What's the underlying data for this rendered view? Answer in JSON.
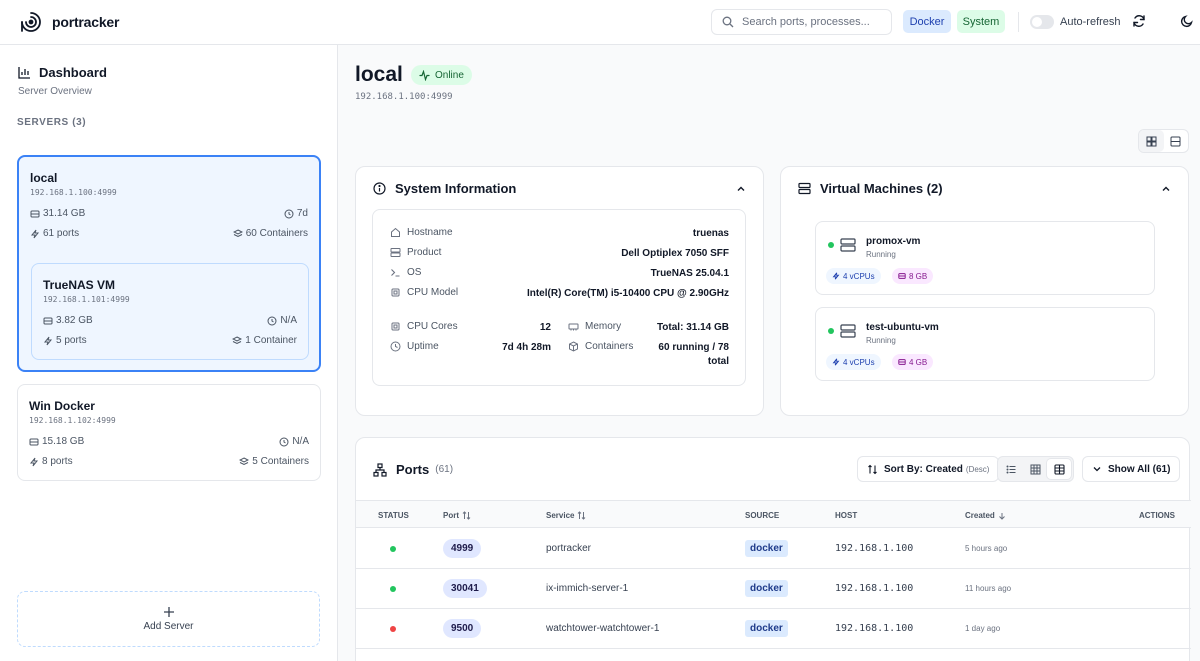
{
  "app": {
    "name": "portracker"
  },
  "header": {
    "search_placeholder": "Search ports, processes...",
    "filters": [
      {
        "label": "Docker",
        "color": "#dbeafe"
      },
      {
        "label": "System",
        "color": "#dcfce7"
      }
    ],
    "auto_refresh_label": "Auto-refresh",
    "auto_refresh_on": false
  },
  "sidebar": {
    "title": "Dashboard",
    "subtitle": "Server Overview",
    "servers_heading": "SERVERS (3)",
    "servers": [
      {
        "name": "local",
        "ip": "192.168.1.100:4999",
        "memory": "31.14 GB",
        "uptime": "7d",
        "ports": "61 ports",
        "containers": "60 Containers",
        "active": true
      },
      {
        "name": "TrueNAS VM",
        "ip": "192.168.1.101:4999",
        "memory": "3.82 GB",
        "uptime": "N/A",
        "ports": "5 ports",
        "containers": "1 Container",
        "nested": true
      },
      {
        "name": "Win Docker",
        "ip": "192.168.1.102:4999",
        "memory": "15.18 GB",
        "uptime": "N/A",
        "ports": "8 ports",
        "containers": "5 Containers"
      }
    ],
    "add_server_label": "Add Server"
  },
  "server": {
    "name": "local",
    "status": "Online",
    "address": "192.168.1.100:4999"
  },
  "system_info": {
    "title": "System Information",
    "rows": [
      {
        "label": "Hostname",
        "icon": "home-icon",
        "value": "truenas"
      },
      {
        "label": "Product",
        "icon": "server-icon",
        "value": "Dell Optiplex 7050 SFF"
      },
      {
        "label": "OS",
        "icon": "terminal-icon",
        "value": "TrueNAS 25.04.1"
      },
      {
        "label": "CPU Model",
        "icon": "cpu-icon",
        "value": "Intel(R) Core(TM) i5-10400 CPU @ 2.90GHz"
      }
    ],
    "cpu_cores": {
      "label": "CPU Cores",
      "value": "12"
    },
    "uptime": {
      "label": "Uptime",
      "value": "7d 4h 28m"
    },
    "memory": {
      "label": "Memory",
      "value": "Total: 31.14 GB"
    },
    "containers": {
      "label": "Containers",
      "value_line1": "60 running / 78",
      "value_line2": "total"
    }
  },
  "vms": {
    "title": "Virtual Machines (2)",
    "items": [
      {
        "name": "promox-vm",
        "state": "Running",
        "cpus": "4 vCPUs",
        "memory": "8 GB"
      },
      {
        "name": "test-ubuntu-vm",
        "state": "Running",
        "cpus": "4 vCPUs",
        "memory": "4 GB"
      }
    ]
  },
  "ports": {
    "title": "Ports",
    "count": "(61)",
    "sort_label": "Sort By: Created",
    "sort_dir": "(Desc)",
    "show_all_label": "Show All (61)",
    "columns": [
      "STATUS",
      "Port",
      "Service",
      "SOURCE",
      "HOST",
      "Created",
      "ACTIONS"
    ],
    "rows": [
      {
        "status": "green",
        "port": "4999",
        "service": "portracker",
        "source": "docker",
        "host": "192.168.1.100",
        "created": "5 hours ago"
      },
      {
        "status": "green",
        "port": "30041",
        "service": "ix-immich-server-1",
        "source": "docker",
        "host": "192.168.1.100",
        "created": "11 hours ago"
      },
      {
        "status": "red",
        "port": "9500",
        "service": "watchtower-watchtower-1",
        "source": "docker",
        "host": "192.168.1.100",
        "created": "1 day ago"
      }
    ]
  },
  "colors": {
    "accent": "#3b82f6",
    "online_green": "#22c55e",
    "offline_red": "#ef4444"
  }
}
